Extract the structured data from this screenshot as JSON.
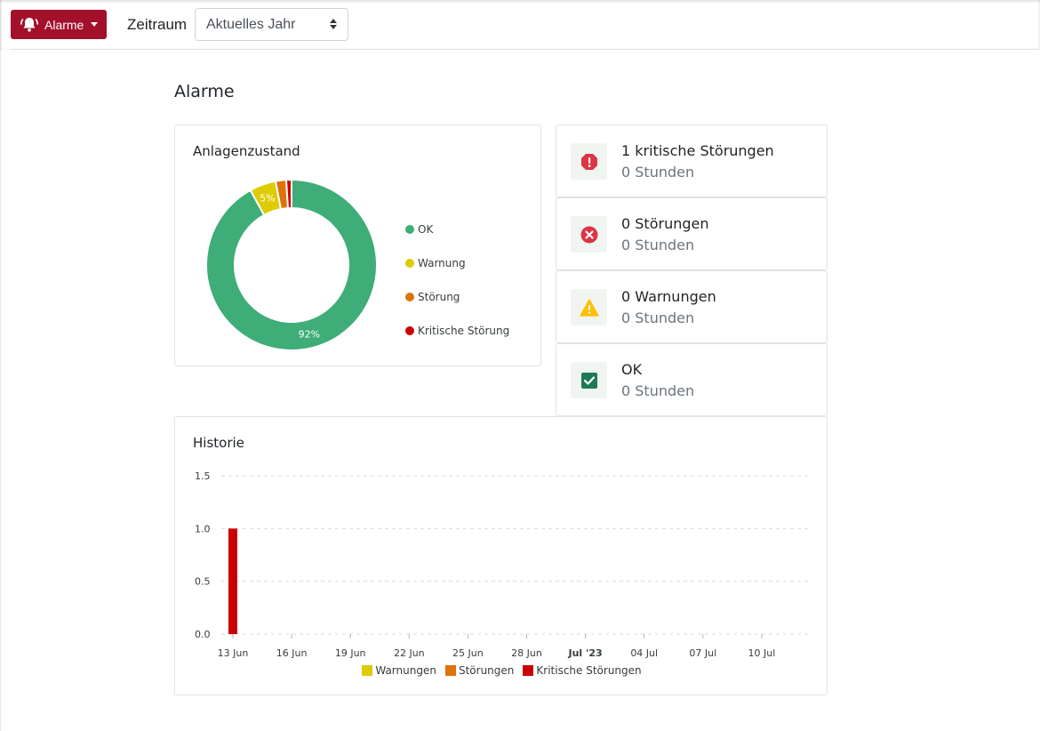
{
  "toolbar": {
    "alarm_button_label": "Alarme",
    "zeitraum_label": "Zeitraum",
    "zeitraum_value": "Aktuelles Jahr",
    "brand_color": "#a3102a"
  },
  "page": {
    "title": "Alarme"
  },
  "state_card": {
    "title": "Anlagenzustand",
    "legend": [
      {
        "label": "OK",
        "color": "#3ead78"
      },
      {
        "label": "Warnung",
        "color": "#dccc00"
      },
      {
        "label": "Störung",
        "color": "#dd7308"
      },
      {
        "label": "Kritische Störung",
        "color": "#cc0000"
      }
    ]
  },
  "stats": [
    {
      "title": "1 kritische Störungen",
      "sub": "0 Stunden",
      "icon": "exclamation-circle-icon",
      "color": "#dc3545"
    },
    {
      "title": "0 Störungen",
      "sub": "0 Stunden",
      "icon": "times-circle-icon",
      "color": "#dc3545"
    },
    {
      "title": "0 Warnungen",
      "sub": "0 Stunden",
      "icon": "warning-triangle-icon",
      "color": "#ffc107"
    },
    {
      "title": "OK",
      "sub": "0 Stunden",
      "icon": "check-square-icon",
      "color": "#1e7a55"
    }
  ],
  "history": {
    "title": "Historie",
    "legend": [
      {
        "label": "Warnungen",
        "color": "#dccc00"
      },
      {
        "label": "Störungen",
        "color": "#dd7308"
      },
      {
        "label": "Kritische Störungen",
        "color": "#cc0000"
      }
    ]
  },
  "chart_data": [
    {
      "type": "pie",
      "title": "Anlagenzustand",
      "donut": true,
      "categories": [
        "OK",
        "Warnung",
        "Störung",
        "Kritische Störung"
      ],
      "values": [
        92,
        5,
        2,
        1
      ],
      "data_labels": [
        "92%",
        "5%",
        "",
        ""
      ],
      "colors": [
        "#3ead78",
        "#dccc00",
        "#dd7308",
        "#cc0000"
      ],
      "legend": "right"
    },
    {
      "type": "bar",
      "title": "Historie",
      "x_ticks": [
        "13 Jun",
        "16 Jun",
        "19 Jun",
        "22 Jun",
        "25 Jun",
        "28 Jun",
        "Jul '23",
        "04 Jul",
        "07 Jul",
        "10 Jul"
      ],
      "y_ticks": [
        "0.0",
        "0.5",
        "1.0",
        "1.5"
      ],
      "ylim": [
        0,
        1.5
      ],
      "series": [
        {
          "name": "Warnungen",
          "color": "#dccc00",
          "points": []
        },
        {
          "name": "Störungen",
          "color": "#dd7308",
          "points": []
        },
        {
          "name": "Kritische Störungen",
          "color": "#cc0000",
          "points": [
            {
              "x": "13 Jun",
              "y": 1
            }
          ]
        }
      ],
      "grid": true,
      "legend": "bottom"
    }
  ]
}
